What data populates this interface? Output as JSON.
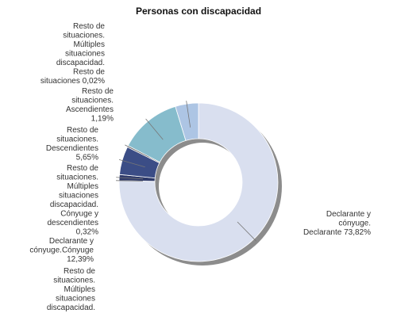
{
  "chart_data": {
    "type": "pie",
    "style": "donut",
    "title": "Personas con discapacidad",
    "series": [
      {
        "label": "Declarante y cónyuge. Declarante",
        "value": 73.82,
        "display": "73,82%",
        "color": "#d9dfef"
      },
      {
        "label": "Resto de situaciones. Múltiples situaciones discapacidad. Resto de situaciones",
        "value": 0.02,
        "display": "0,02%",
        "color": "#6a6a6a"
      },
      {
        "label": "Resto de situaciones. Ascendientes",
        "value": 1.19,
        "display": "1,19%",
        "color": "#2e3a6a"
      },
      {
        "label": "Resto de situaciones. Descendientes",
        "value": 5.65,
        "display": "5,65%",
        "color": "#3b4d86"
      },
      {
        "label": "Resto de situaciones. Múltiples situaciones discapacidad. Cónyuge y descendientes",
        "value": 0.32,
        "display": "0,32%",
        "color": "#7a7a7a"
      },
      {
        "label": "Declarante y cónyuge. Cónyuge",
        "value": 12.39,
        "display": "12,39%",
        "color": "#86bccc"
      },
      {
        "label": "Resto de situaciones. Múltiples situaciones discapacidad.",
        "value": 4.61,
        "display": "",
        "color": "#adc5e4"
      }
    ],
    "labels": [
      {
        "lines": [
          "Resto de",
          "situaciones.",
          "Múltiples",
          "situaciones",
          "discapacidad.",
          "Resto de",
          "situaciones 0,02%"
        ],
        "anchor": "end"
      },
      {
        "lines": [
          "Resto de",
          "situaciones.",
          "Ascendientes",
          "1,19%"
        ],
        "anchor": "end"
      },
      {
        "lines": [
          "Resto de",
          "situaciones.",
          "Descendientes",
          "5,65%"
        ],
        "anchor": "end"
      },
      {
        "lines": [
          "Resto de",
          "situaciones.",
          "Múltiples",
          "situaciones",
          "discapacidad.",
          "Cónyuge y",
          "descendientes",
          "0,32%"
        ],
        "anchor": "end"
      },
      {
        "lines": [
          "Declarante y",
          "cónyuge.Cónyuge",
          "12,39%"
        ],
        "anchor": "end"
      },
      {
        "lines": [
          "Resto de",
          "situaciones.",
          "Múltiples",
          "situaciones",
          "discapacidad."
        ],
        "anchor": "end"
      },
      {
        "lines": [
          "Declarante y",
          "cónyuge.",
          "Declarante 73,82%"
        ],
        "anchor": "end"
      }
    ],
    "legend": "none"
  }
}
